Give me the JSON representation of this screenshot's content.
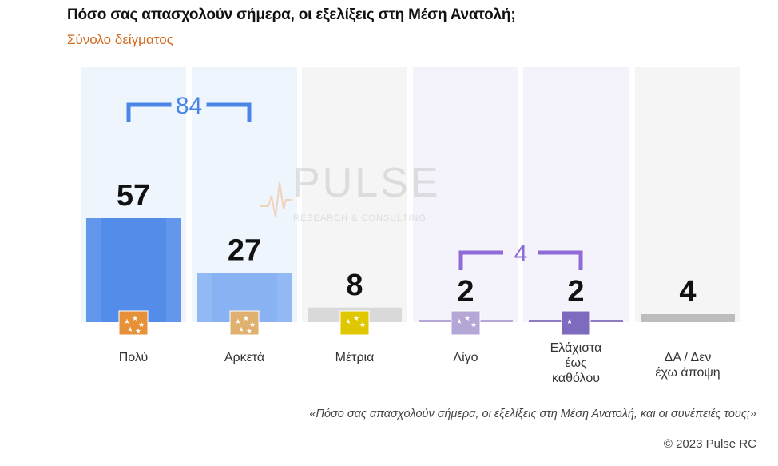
{
  "header": {
    "title": "Πόσο σας απασχολούν σήμερα, οι εξελίξεις στη Μέση Ανατολή;",
    "subtitle": "Σύνολο δείγματος"
  },
  "watermark": {
    "name": "PULSE",
    "tagline": "RESEARCH & CONSULTING"
  },
  "footer": {
    "note": "«Πόσο  σας απασχολούν σήμερα, οι εξελίξεις στη Μέση Ανατολή, και οι συνέπειές τους;»",
    "copyright": "© 2023 Pulse RC"
  },
  "chart_data": {
    "type": "bar",
    "title": "Πόσο σας απασχολούν σήμερα, οι εξελίξεις στη Μέση Ανατολή;",
    "subtitle": "Σύνολο δείγματος",
    "categories": [
      "Πολύ",
      "Αρκετά",
      "Μέτρια",
      "Λίγο",
      "Ελάχιστα\nέως\nκαθόλου",
      "ΔΑ / Δεν\nέχω άποψη"
    ],
    "values": [
      57,
      27,
      8,
      2,
      2,
      4
    ],
    "ylim": [
      0,
      100
    ],
    "grid": false,
    "legend": "none",
    "colors": [
      "#4a86e8",
      "#82aef2",
      "#d9d9d9",
      "#b4a7d6",
      "#8e7cc3",
      "#bdbdbd"
    ],
    "column_bg": [
      "#eef5fd",
      "#eef5fd",
      "#f5f5f5",
      "#f4f2fa",
      "#f4f2fa",
      "#f5f5f5"
    ],
    "icon_colors": [
      "#e69138",
      "#e0b070",
      "#e0c800",
      "#b4a7d6",
      "#7e6bc0",
      ""
    ],
    "groups": [
      {
        "label": "84",
        "from": 0,
        "to": 1,
        "color": "#4a86e8"
      },
      {
        "label": "4",
        "from": 3,
        "to": 4,
        "color": "#8e6bd6"
      }
    ]
  }
}
